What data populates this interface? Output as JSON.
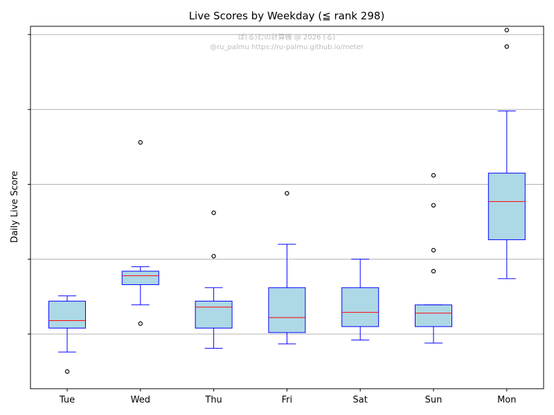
{
  "chart_data": {
    "type": "box",
    "title": "Live Scores by Weekday (≦ rank 298)",
    "xlabel": "",
    "ylabel": "Daily Live Score",
    "ylim": [
      -0.37,
      2.4
    ],
    "grid": "horizontal",
    "categories": [
      "Tue",
      "Wed",
      "Thu",
      "Fri",
      "Sat",
      "Sun",
      "Mon"
    ],
    "boxes": [
      {
        "label": "Tue",
        "whisker_low": -0.12,
        "q1": 0.04,
        "median": 0.09,
        "q3": 0.22,
        "whisker_high": 0.255,
        "outliers": [
          -0.25
        ]
      },
      {
        "label": "Wed",
        "whisker_low": 0.195,
        "q1": 0.33,
        "median": 0.39,
        "q3": 0.42,
        "whisker_high": 0.45,
        "outliers": [
          1.28,
          0.07
        ]
      },
      {
        "label": "Thu",
        "whisker_low": -0.095,
        "q1": 0.04,
        "median": 0.18,
        "q3": 0.22,
        "whisker_high": 0.31,
        "outliers": [
          0.81,
          0.52
        ]
      },
      {
        "label": "Fri",
        "whisker_low": -0.065,
        "q1": 0.01,
        "median": 0.11,
        "q3": 0.31,
        "whisker_high": 0.6,
        "outliers": [
          0.94
        ]
      },
      {
        "label": "Sat",
        "whisker_low": -0.04,
        "q1": 0.05,
        "median": 0.145,
        "q3": 0.31,
        "whisker_high": 0.5,
        "outliers": []
      },
      {
        "label": "Sun",
        "whisker_low": -0.06,
        "q1": 0.05,
        "median": 0.14,
        "q3": 0.195,
        "whisker_high": 0.195,
        "outliers": [
          1.06,
          0.86,
          0.56,
          0.42
        ]
      },
      {
        "label": "Mon",
        "whisker_low": 0.37,
        "q1": 0.63,
        "median": 0.885,
        "q3": 1.075,
        "whisker_high": 1.49,
        "outliers": [
          2.03,
          1.92
        ]
      }
    ],
    "colors": {
      "box_fill": "#add8e6",
      "box_edge": "#0000ff",
      "median": "#ff0000",
      "grid": "#b0b0b0",
      "outlier_edge": "#000000"
    },
    "watermark": {
      "line1": "ぱ(る)むの計算機 @ 2026 (る)",
      "line2": "@ru_palmu  https://ru-palmu.github.io/meter"
    }
  }
}
